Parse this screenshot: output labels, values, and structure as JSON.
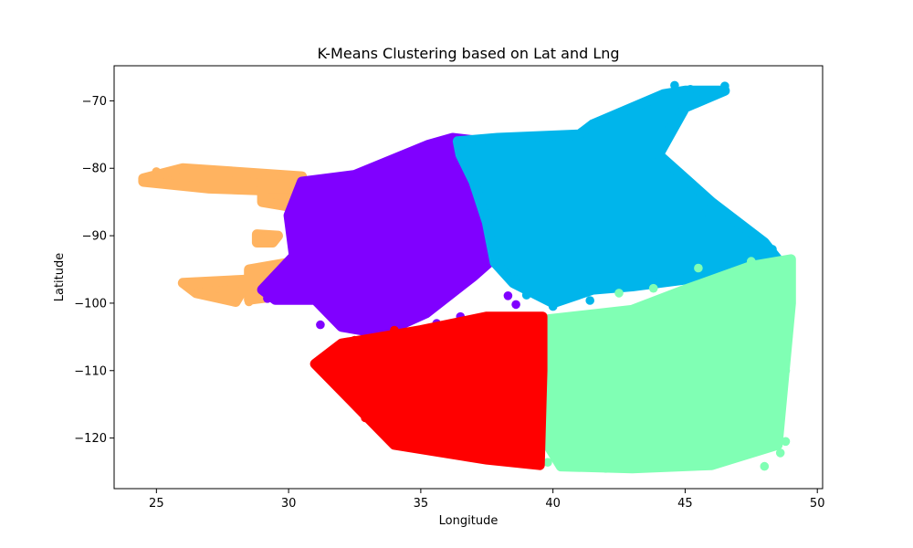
{
  "chart_data": {
    "type": "scatter",
    "title": "K-Means Clustering based on Lat and Lng",
    "xlabel": "Longitude",
    "ylabel": "Latitude",
    "xlim": [
      23.4,
      50.2
    ],
    "ylim": [
      -127.5,
      -64.8
    ],
    "xticks": [
      25,
      30,
      35,
      40,
      45,
      50
    ],
    "yticks": [
      -70,
      -80,
      -90,
      -100,
      -110,
      -120
    ],
    "grid": false,
    "legend": "none",
    "clusters": [
      {
        "color": "#ffb360",
        "regions": [
          {
            "x": [
              24.5,
              26.0,
              30.5,
              30.7,
              27.0,
              24.5
            ],
            "y": [
              -81.5,
              -80.0,
              -81.2,
              -83.5,
              -83.0,
              -82.0
            ]
          },
          {
            "x": [
              29.0,
              30.5,
              30.5,
              29.0
            ],
            "y": [
              -83.0,
              -83.0,
              -86.0,
              -85.0
            ]
          },
          {
            "x": [
              28.8,
              29.6,
              29.4,
              28.8
            ],
            "y": [
              -89.8,
              -90.0,
              -91.0,
              -91.0
            ]
          },
          {
            "x": [
              28.5,
              30.0,
              29.5,
              28.5
            ],
            "y": [
              -95.0,
              -94.0,
              -99.0,
              -99.5
            ]
          },
          {
            "x": [
              26.0,
              28.5,
              28.0,
              26.5
            ],
            "y": [
              -97.0,
              -96.5,
              -99.8,
              -98.5
            ]
          }
        ],
        "points": [
          [
            24.5,
            -81.8
          ],
          [
            25.0,
            -80.5
          ],
          [
            26.0,
            -97.1
          ],
          [
            26.3,
            -97.8
          ],
          [
            26.7,
            -98.4
          ],
          [
            28.0,
            -99.2
          ],
          [
            28.5,
            -99.8
          ],
          [
            28.9,
            -90.2
          ],
          [
            29.3,
            -90.5
          ],
          [
            29.6,
            -99.1
          ],
          [
            30.3,
            -82.5
          ],
          [
            30.5,
            -83.8
          ],
          [
            30.5,
            -86.0
          ]
        ]
      },
      {
        "color": "#8000ff",
        "regions": [
          {
            "x": [
              30.5,
              32.5,
              35.3,
              36.2,
              37.3,
              37.9,
              37.8,
              38.3,
              37.0,
              35.2,
              33.5,
              32.0,
              31.0,
              29.5,
              29.0,
              30.2,
              30.0
            ],
            "y": [
              -82.0,
              -81.0,
              -76.5,
              -75.5,
              -76.0,
              -81.0,
              -86.0,
              -91.5,
              -96.0,
              -101.5,
              -104.5,
              -103.5,
              -99.5,
              -99.5,
              -98.0,
              -93.0,
              -87.0
            ]
          }
        ],
        "points": [
          [
            29.2,
            -99.3
          ],
          [
            29.6,
            -95.8
          ],
          [
            31.2,
            -103.2
          ],
          [
            32.7,
            -101.2
          ],
          [
            33.6,
            -105.5
          ],
          [
            36.2,
            -75.8
          ],
          [
            37.8,
            -82.5
          ],
          [
            38.3,
            -98.9
          ],
          [
            38.6,
            -100.2
          ],
          [
            38.2,
            -95.2
          ],
          [
            36.5,
            -102.0
          ],
          [
            35.6,
            -103.0
          ]
        ]
      },
      {
        "color": "#00b5eb",
        "regions": [
          {
            "x": [
              36.4,
              37.9,
              41.0,
              41.5,
              44.2,
              45.0,
              46.5,
              45.0,
              44.0,
              46.0,
              48.0,
              48.5,
              47.0,
              45.0,
              43.0,
              41.5,
              40.0,
              38.5,
              37.8,
              37.5,
              37.0,
              36.5
            ],
            "y": [
              -76.0,
              -75.5,
              -75.0,
              -73.5,
              -69.0,
              -68.5,
              -68.5,
              -71.0,
              -78.0,
              -85.0,
              -91.0,
              -93.5,
              -95.0,
              -96.5,
              -97.5,
              -98.0,
              -100.0,
              -97.0,
              -94.0,
              -88.0,
              -82.0,
              -78.0
            ]
          }
        ],
        "points": [
          [
            44.6,
            -67.7
          ],
          [
            45.2,
            -68.3
          ],
          [
            46.5,
            -67.8
          ],
          [
            44.4,
            -74.0
          ],
          [
            45.8,
            -86.5
          ],
          [
            48.3,
            -92.0
          ],
          [
            48.9,
            -93.5
          ],
          [
            41.4,
            -99.6
          ],
          [
            40.0,
            -100.5
          ],
          [
            39.0,
            -98.8
          ],
          [
            38.6,
            -96.5
          ]
        ]
      },
      {
        "color": "#80ffb4",
        "regions": [
          {
            "x": [
              39.6,
              43.0,
              45.0,
              47.5,
              49.0,
              49.0,
              48.5,
              46.0,
              43.0,
              40.3,
              39.8,
              39.4,
              39.5
            ],
            "y": [
              -102.5,
              -101.0,
              -98.0,
              -94.5,
              -93.5,
              -100.0,
              -121.0,
              -124.0,
              -124.5,
              -124.2,
              -121.0,
              -114.0,
              -105.0
            ]
          }
        ],
        "points": [
          [
            42.5,
            -98.5
          ],
          [
            43.8,
            -97.8
          ],
          [
            45.5,
            -94.8
          ],
          [
            47.5,
            -93.8
          ],
          [
            48.8,
            -95.5
          ],
          [
            48.9,
            -105.0
          ],
          [
            48.8,
            -110.0
          ],
          [
            48.8,
            -120.5
          ],
          [
            48.6,
            -122.2
          ],
          [
            48.0,
            -124.2
          ],
          [
            45.0,
            -124.0
          ],
          [
            42.0,
            -124.5
          ],
          [
            39.8,
            -123.6
          ]
        ]
      },
      {
        "color": "#ff0000",
        "regions": [
          {
            "x": [
              32.0,
              35.0,
              37.5,
              39.6,
              39.6,
              39.5,
              37.5,
              34.0,
              33.0,
              31.0
            ],
            "y": [
              -106.0,
              -104.0,
              -102.0,
              -102.0,
              -110.0,
              -124.0,
              -123.2,
              -121.0,
              -117.0,
              -109.0
            ]
          }
        ],
        "points": [
          [
            31.2,
            -109.0
          ],
          [
            31.8,
            -110.2
          ],
          [
            32.0,
            -106.0
          ],
          [
            32.5,
            -105.5
          ],
          [
            34.0,
            -104.0
          ],
          [
            38.5,
            -102.0
          ],
          [
            39.5,
            -123.8
          ],
          [
            35.5,
            -121.5
          ],
          [
            32.9,
            -117.0
          ]
        ]
      }
    ]
  }
}
